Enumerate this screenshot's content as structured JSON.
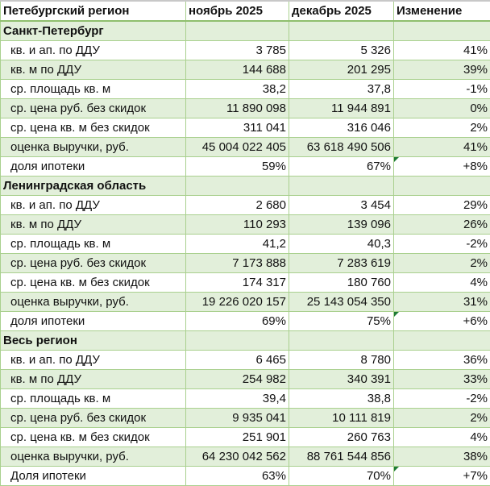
{
  "header": {
    "title": "Петебургский регион",
    "col1": "ноябрь 2025",
    "col2": "декабрь 2025",
    "col3": "Изменение"
  },
  "sections": [
    {
      "name": "Санкт-Петербург",
      "rows": [
        [
          "кв. и ап. по ДДУ",
          "3 785",
          "5 326",
          "41%"
        ],
        [
          "кв. м по ДДУ",
          "144 688",
          "201 295",
          "39%"
        ],
        [
          "ср. площадь кв. м",
          "38,2",
          "37,8",
          "-1%"
        ],
        [
          "ср. цена руб. без скидок",
          "11 890 098",
          "11 944 891",
          "0%"
        ],
        [
          "ср. цена кв. м без скидок",
          "311 041",
          "316 046",
          "2%"
        ],
        [
          "оценка выручки, руб.",
          "45 004 022 405",
          "63 618 490 506",
          "41%"
        ],
        [
          "доля ипотеки",
          "59%",
          "67%",
          "+8%"
        ]
      ]
    },
    {
      "name": "Ленинградская область",
      "rows": [
        [
          "кв. и ап. по ДДУ",
          "2 680",
          "3 454",
          "29%"
        ],
        [
          "кв. м по ДДУ",
          "110 293",
          "139 096",
          "26%"
        ],
        [
          "ср. площадь кв. м",
          "41,2",
          "40,3",
          "-2%"
        ],
        [
          "ср. цена руб. без скидок",
          "7 173 888",
          "7 283 619",
          "2%"
        ],
        [
          "ср. цена кв. м без скидок",
          "174 317",
          "180 760",
          "4%"
        ],
        [
          "оценка выручки, руб.",
          "19 226 020 157",
          "25 143 054 350",
          "31%"
        ],
        [
          "доля ипотеки",
          "69%",
          "75%",
          "+6%"
        ]
      ]
    },
    {
      "name": "Весь регион",
      "rows": [
        [
          "кв. и ап. по ДДУ",
          "6 465",
          "8 780",
          "36%"
        ],
        [
          "кв. м по ДДУ",
          "254 982",
          "340 391",
          "33%"
        ],
        [
          "ср. площадь кв. м",
          "39,4",
          "38,8",
          "-2%"
        ],
        [
          "ср. цена руб. без скидок",
          "9 935 041",
          "10 111 819",
          "2%"
        ],
        [
          "ср. цена кв. м без скидок",
          "251 901",
          "260 763",
          "4%"
        ],
        [
          "оценка выручки, руб.",
          "64 230 042 562",
          "88 761 544 856",
          "38%"
        ],
        [
          "Доля ипотеки",
          "63%",
          "70%",
          "+7%"
        ]
      ]
    }
  ]
}
